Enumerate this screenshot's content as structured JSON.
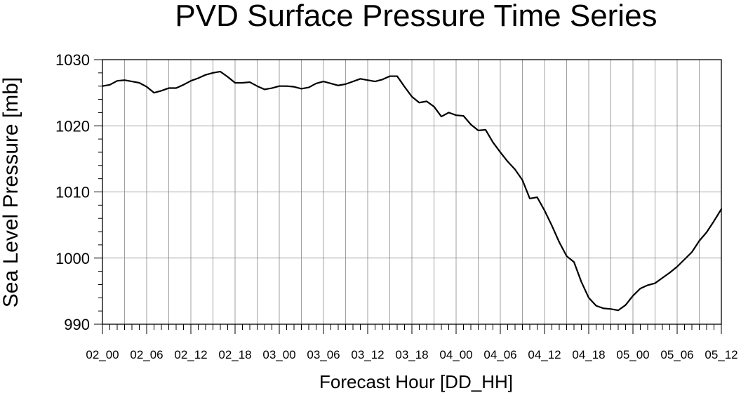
{
  "chart_data": {
    "type": "line",
    "title": "PVD Surface Pressure Time Series",
    "xlabel": "Forecast Hour [DD_HH]",
    "ylabel": "Sea Level Pressure [mb]",
    "ylim": [
      990,
      1030
    ],
    "y_ticks": [
      990,
      1000,
      1010,
      1020,
      1030
    ],
    "x_tick_labels": [
      "02_00",
      "02_06",
      "02_12",
      "02_18",
      "03_00",
      "03_06",
      "03_12",
      "03_18",
      "04_00",
      "04_06",
      "04_12",
      "04_18",
      "05_00",
      "05_06",
      "05_12"
    ],
    "grid": true,
    "x_hours": [
      0,
      1,
      2,
      3,
      4,
      5,
      6,
      7,
      8,
      9,
      10,
      11,
      12,
      13,
      14,
      15,
      16,
      17,
      18,
      19,
      20,
      21,
      22,
      23,
      24,
      25,
      26,
      27,
      28,
      29,
      30,
      31,
      32,
      33,
      34,
      35,
      36,
      37,
      38,
      39,
      40,
      41,
      42,
      43,
      44,
      45,
      46,
      47,
      48,
      49,
      50,
      51,
      52,
      53,
      54,
      55,
      56,
      57,
      58,
      59,
      60,
      61,
      62,
      63,
      64,
      65,
      66,
      67,
      68,
      69,
      70,
      71,
      72,
      73,
      74,
      75,
      76,
      77,
      78,
      79,
      80,
      81,
      82,
      83,
      84
    ],
    "series": [
      {
        "values": [
          1026.0,
          1026.2,
          1026.8,
          1026.9,
          1026.7,
          1026.5,
          1025.9,
          1025.0,
          1025.3,
          1025.7,
          1025.7,
          1026.2,
          1026.8,
          1027.2,
          1027.7,
          1028.0,
          1028.2,
          1027.4,
          1026.5,
          1026.5,
          1026.6,
          1026.0,
          1025.5,
          1025.7,
          1026.0,
          1026.0,
          1025.9,
          1025.6,
          1025.8,
          1026.4,
          1026.7,
          1026.4,
          1026.1,
          1026.3,
          1026.7,
          1027.1,
          1026.9,
          1026.7,
          1027.0,
          1027.5,
          1027.5,
          1025.9,
          1024.4,
          1023.5,
          1023.7,
          1022.9,
          1021.4,
          1022.0,
          1021.6,
          1021.5,
          1020.2,
          1019.3,
          1019.4,
          1017.5,
          1016.0,
          1014.6,
          1013.4,
          1011.8,
          1009.0,
          1009.2,
          1007.2,
          1004.9,
          1002.4,
          1000.3,
          999.4,
          996.4,
          994.0,
          992.8,
          992.4,
          992.3,
          992.1,
          992.9,
          994.3,
          995.4,
          995.9,
          996.2,
          997.0,
          997.8,
          998.7,
          999.8,
          1000.9,
          1002.6,
          1003.9,
          1005.6,
          1007.4
        ]
      }
    ]
  }
}
